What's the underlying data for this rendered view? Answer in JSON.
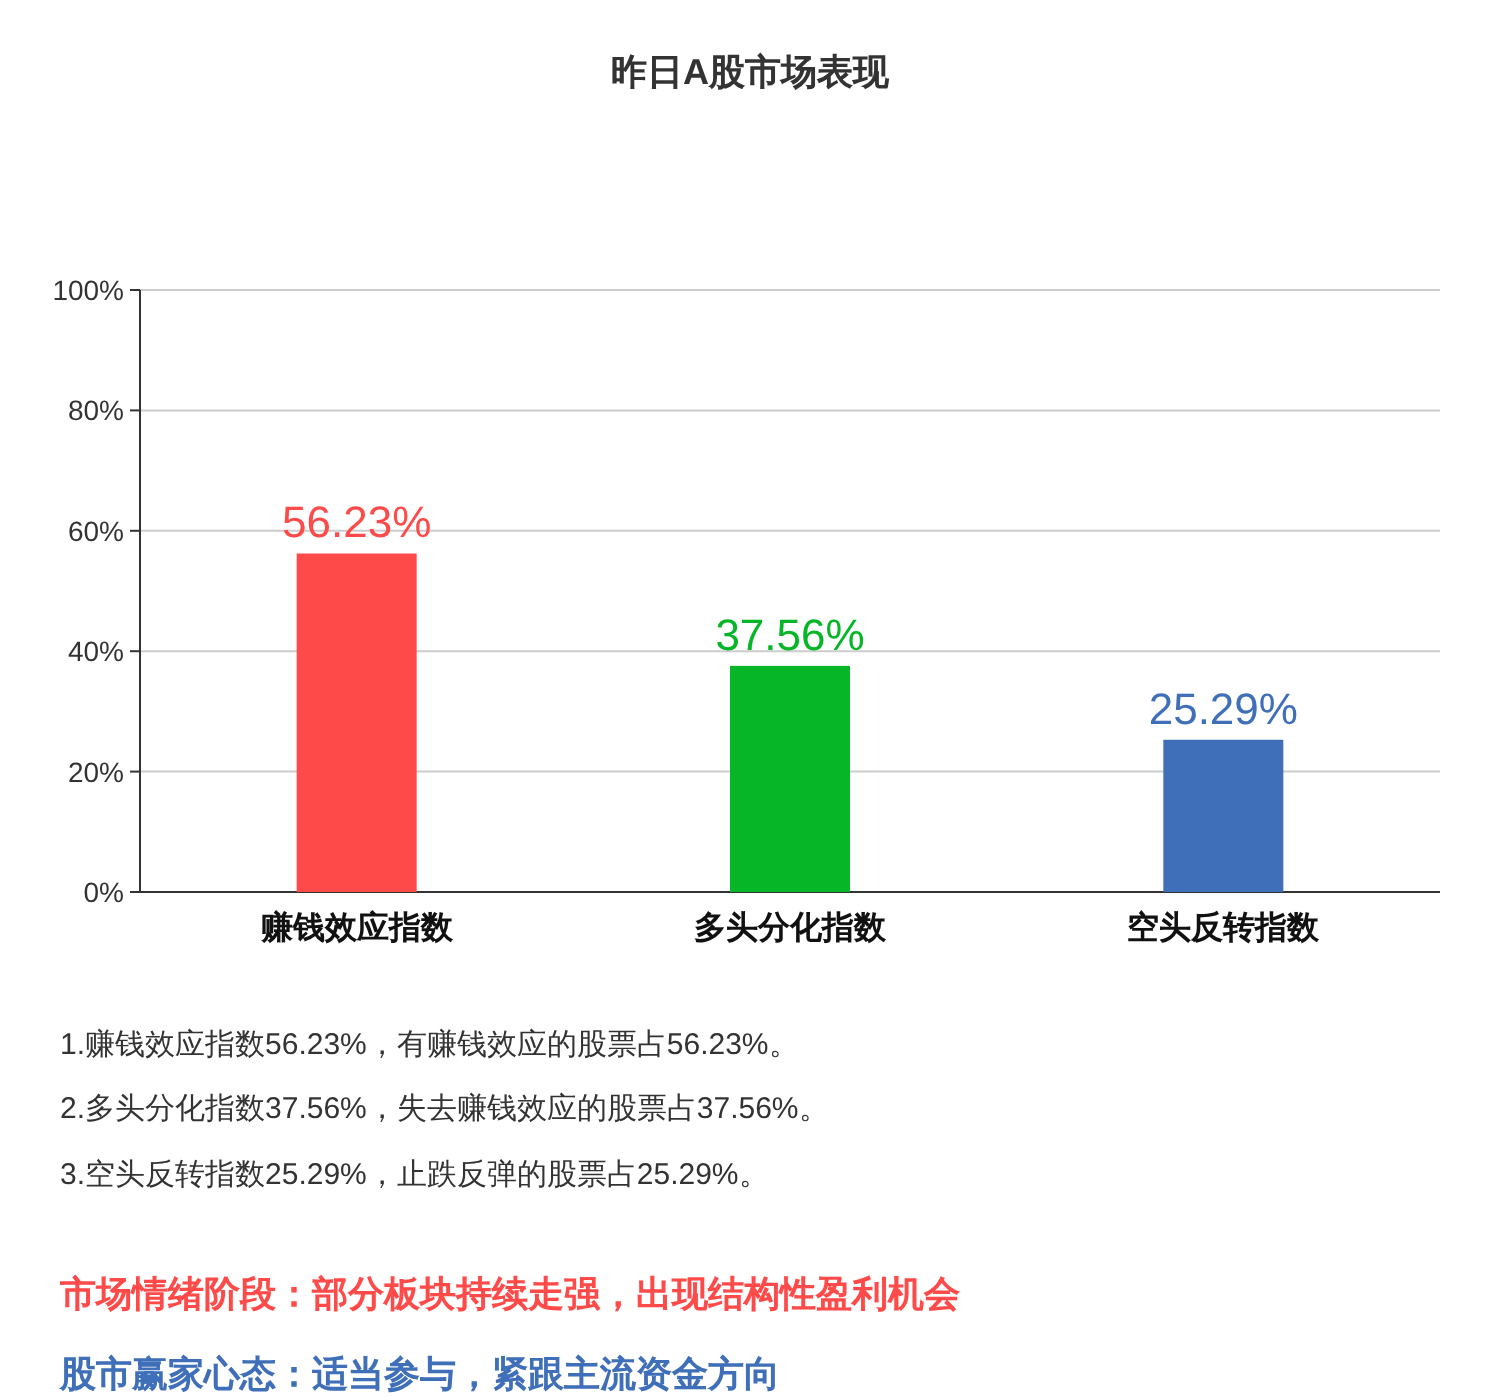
{
  "chart_data": {
    "type": "bar",
    "title": "昨日A股市场表现",
    "categories": [
      "赚钱效应指数",
      "多头分化指数",
      "空头反转指数"
    ],
    "values": [
      56.23,
      37.56,
      25.29
    ],
    "colors": [
      "#ff4a4a",
      "#06b627",
      "#3f6fb8"
    ],
    "value_labels": [
      "56.23%",
      "37.56%",
      "25.29%"
    ],
    "ylim": [
      0,
      100
    ],
    "yticks": [
      {
        "value": 0,
        "label": "0%"
      },
      {
        "value": 20,
        "label": "20%"
      },
      {
        "value": 40,
        "label": "40%"
      },
      {
        "value": 60,
        "label": "60%"
      },
      {
        "value": 80,
        "label": "80%"
      },
      {
        "value": 100,
        "label": "100%"
      }
    ],
    "grid": "y",
    "annotations": [
      "1.赚钱效应指数56.23%，有赚钱效应的股票占56.23%。",
      "2.多头分化指数37.56%，失去赚钱效应的股票占37.56%。",
      "3.空头反转指数25.29%，止跌反弹的股票占25.29%。",
      "市场情绪阶段：部分板块持续走强，出现结构性盈利机会",
      "股市赢家心态：适当参与，紧跟主流资金方向"
    ]
  }
}
